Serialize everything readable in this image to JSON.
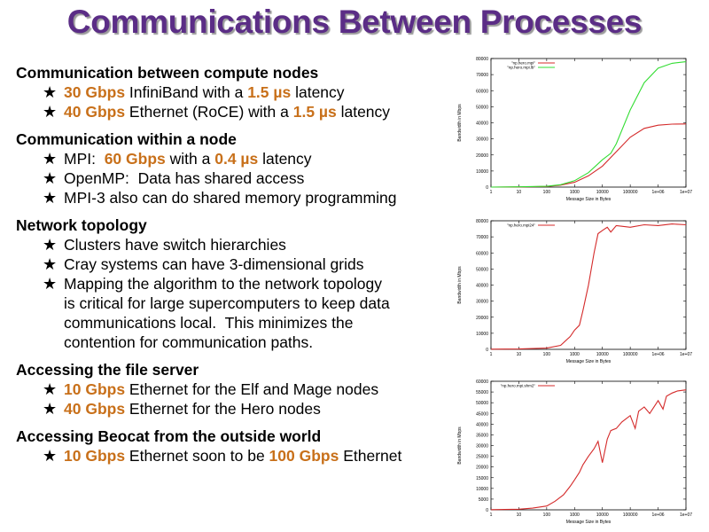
{
  "title": "Communications Between Processes",
  "sections": [
    {
      "heading": "Communication between compute nodes",
      "bullets": [
        [
          {
            "t": "30 Gbps",
            "hl": true
          },
          {
            "t": " InfiniBand with a "
          },
          {
            "t": "1.5 µs",
            "hl": true
          },
          {
            "t": " latency"
          }
        ],
        [
          {
            "t": "40 Gbps",
            "hl": true
          },
          {
            "t": " Ethernet (RoCE) with a "
          },
          {
            "t": "1.5 µs",
            "hl": true
          },
          {
            "t": " latency"
          }
        ]
      ]
    },
    {
      "heading": "Communication within a node",
      "bullets": [
        [
          {
            "t": "MPI:  "
          },
          {
            "t": "60 Gbps",
            "hl": true
          },
          {
            "t": " with a "
          },
          {
            "t": "0.4 µs",
            "hl": true
          },
          {
            "t": " latency"
          }
        ],
        [
          {
            "t": "OpenMP:  Data has shared access"
          }
        ],
        [
          {
            "t": "MPI-3 also can do shared memory programming"
          }
        ]
      ]
    },
    {
      "heading": "Network topology",
      "bullets": [
        [
          {
            "t": "Clusters have switch hierarchies"
          }
        ],
        [
          {
            "t": "Cray systems can have 3-dimensional grids"
          }
        ],
        [
          {
            "t": "Mapping the algorithm to the network topology"
          }
        ]
      ],
      "continuation": [
        "is critical for large supercomputers to keep data",
        "communications local.  This minimizes the",
        "contention for communication paths."
      ]
    },
    {
      "heading": "Accessing the file server",
      "bullets": [
        [
          {
            "t": "10 Gbps",
            "hl": true
          },
          {
            "t": " Ethernet for the Elf and Mage nodes"
          }
        ],
        [
          {
            "t": "40 Gbps",
            "hl": true
          },
          {
            "t": " Ethernet for the Hero nodes"
          }
        ]
      ]
    },
    {
      "heading": "Accessing Beocat from the outside world",
      "bullets": [
        [
          {
            "t": "10 Gbps",
            "hl": true
          },
          {
            "t": " Ethernet soon to be "
          },
          {
            "t": "100 Gbps",
            "hl": true
          },
          {
            "t": " Ethernet"
          }
        ]
      ]
    }
  ],
  "colors": {
    "title": "#5b2d86",
    "highlight": "#c8701a",
    "red_series": "#d42a2a",
    "green_series": "#33dd33"
  },
  "chart_data": [
    {
      "type": "line",
      "xlabel": "Message Size in Bytes",
      "ylabel": "Bandwidth in Mbps",
      "xscale": "log",
      "xlim": [
        1,
        10000000
      ],
      "ylim": [
        0,
        80000
      ],
      "yticks": [
        0,
        10000,
        20000,
        30000,
        40000,
        50000,
        60000,
        70000,
        80000
      ],
      "xticks": [
        1,
        10,
        100,
        1000,
        10000,
        100000,
        1000000,
        10000000
      ],
      "xtick_labels": [
        "1",
        "10",
        "100",
        "1000",
        "10000",
        "100000",
        "1e+06",
        "1e+07"
      ],
      "legend_position": "top-left",
      "series": [
        {
          "name": "\"np.hero.mpi\"",
          "color": "#d42a2a",
          "points": [
            [
              1,
              0
            ],
            [
              10,
              100
            ],
            [
              100,
              400
            ],
            [
              316,
              1200
            ],
            [
              1000,
              3000
            ],
            [
              3162,
              7000
            ],
            [
              10000,
              13000
            ],
            [
              31623,
              22000
            ],
            [
              100000,
              31000
            ],
            [
              316228,
              36500
            ],
            [
              1000000,
              38500
            ],
            [
              3162278,
              39200
            ],
            [
              10000000,
              39300
            ]
          ]
        },
        {
          "name": "\"np.hero.mpi.lb\"",
          "color": "#33dd33",
          "points": [
            [
              1,
              0
            ],
            [
              10,
              150
            ],
            [
              100,
              500
            ],
            [
              316,
              1500
            ],
            [
              1000,
              4000
            ],
            [
              3162,
              9000
            ],
            [
              10000,
              17000
            ],
            [
              20000,
              21000
            ],
            [
              31623,
              27000
            ],
            [
              100000,
              48000
            ],
            [
              316228,
              65000
            ],
            [
              1000000,
              74000
            ],
            [
              3162278,
              77000
            ],
            [
              10000000,
              78000
            ]
          ]
        }
      ]
    },
    {
      "type": "line",
      "xlabel": "Message Size in Bytes",
      "ylabel": "Bandwidth in Mbps",
      "xscale": "log",
      "xlim": [
        1,
        10000000
      ],
      "ylim": [
        0,
        80000
      ],
      "yticks": [
        0,
        10000,
        20000,
        30000,
        40000,
        50000,
        60000,
        70000,
        80000
      ],
      "xticks": [
        1,
        10,
        100,
        1000,
        10000,
        100000,
        1000000,
        10000000
      ],
      "xtick_labels": [
        "1",
        "10",
        "100",
        "1000",
        "10000",
        "100000",
        "1e+06",
        "1e+07"
      ],
      "legend_position": "top-left",
      "series": [
        {
          "name": "\"np.hero.mpi24\"",
          "color": "#d42a2a",
          "points": [
            [
              1,
              100
            ],
            [
              10,
              200
            ],
            [
              100,
              800
            ],
            [
              316,
              2500
            ],
            [
              700,
              8000
            ],
            [
              1000,
              12000
            ],
            [
              1500,
              15000
            ],
            [
              2000,
              24000
            ],
            [
              3162,
              40000
            ],
            [
              5000,
              60000
            ],
            [
              7000,
              72000
            ],
            [
              10000,
              74000
            ],
            [
              15000,
              76000
            ],
            [
              20000,
              73000
            ],
            [
              31623,
              77000
            ],
            [
              100000,
              76000
            ],
            [
              316228,
              77500
            ],
            [
              1000000,
              77000
            ],
            [
              3162278,
              78000
            ],
            [
              10000000,
              77500
            ]
          ]
        }
      ]
    },
    {
      "type": "line",
      "xlabel": "Message Size in Bytes",
      "ylabel": "Bandwidth in Mbps",
      "xscale": "log",
      "xlim": [
        1,
        10000000
      ],
      "ylim": [
        0,
        60000
      ],
      "yticks": [
        0,
        5000,
        10000,
        15000,
        20000,
        25000,
        30000,
        35000,
        40000,
        45000,
        50000,
        55000,
        60000
      ],
      "xticks": [
        1,
        10,
        100,
        1000,
        10000,
        100000,
        1000000,
        10000000
      ],
      "xtick_labels": [
        "1",
        "10",
        "100",
        "1000",
        "10000",
        "100000",
        "1e+06",
        "1e+07"
      ],
      "legend_position": "top-left",
      "series": [
        {
          "name": "\"np.hero.mpi.shm2\"",
          "color": "#d42a2a",
          "points": [
            [
              1,
              100
            ],
            [
              10,
              300
            ],
            [
              31,
              800
            ],
            [
              100,
              1800
            ],
            [
              200,
              4000
            ],
            [
              400,
              7000
            ],
            [
              700,
              11000
            ],
            [
              1000,
              14000
            ],
            [
              1500,
              17500
            ],
            [
              2000,
              21000
            ],
            [
              3162,
              25000
            ],
            [
              5000,
              28500
            ],
            [
              7000,
              32000
            ],
            [
              10000,
              22000
            ],
            [
              15000,
              33000
            ],
            [
              20000,
              37000
            ],
            [
              31623,
              38000
            ],
            [
              50000,
              41000
            ],
            [
              100000,
              44000
            ],
            [
              150000,
              38000
            ],
            [
              200000,
              46000
            ],
            [
              316228,
              48000
            ],
            [
              500000,
              45000
            ],
            [
              1000000,
              51000
            ],
            [
              1500000,
              47000
            ],
            [
              2000000,
              53000
            ],
            [
              3162278,
              54500
            ],
            [
              5000000,
              55500
            ],
            [
              10000000,
              56000
            ]
          ]
        }
      ]
    }
  ]
}
